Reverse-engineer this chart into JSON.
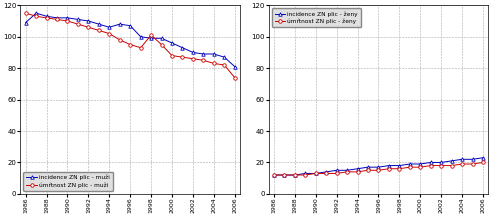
{
  "years": [
    1986,
    1987,
    1988,
    1989,
    1990,
    1991,
    1992,
    1993,
    1994,
    1995,
    1996,
    1997,
    1998,
    1999,
    2000,
    2001,
    2002,
    2003,
    2004,
    2005,
    2006
  ],
  "muzi_incidence": [
    109,
    115,
    113,
    112,
    112,
    111,
    110,
    108,
    106,
    108,
    107,
    100,
    99,
    99,
    96,
    93,
    90,
    89,
    89,
    87,
    81
  ],
  "muzi_umrtnost": [
    115,
    113,
    112,
    111,
    110,
    108,
    106,
    104,
    102,
    98,
    95,
    93,
    101,
    95,
    88,
    87,
    86,
    85,
    83,
    82,
    74
  ],
  "zeny_incidence": [
    12,
    12,
    12,
    13,
    13,
    14,
    15,
    15,
    16,
    17,
    17,
    18,
    18,
    19,
    19,
    20,
    20,
    21,
    22,
    22,
    23
  ],
  "zeny_umrtnost": [
    12,
    12,
    12,
    12,
    13,
    13,
    13,
    14,
    14,
    15,
    15,
    16,
    16,
    17,
    17,
    18,
    18,
    18,
    19,
    19,
    20
  ],
  "color_blue": "#0000bb",
  "color_red": "#cc0000",
  "legend_muzi": [
    "incidence ZN plic - muži",
    "úmŕtnost ZN plic - muži"
  ],
  "legend_zeny": [
    "incidence ZN plic - ženy",
    "úmŕtnost ZN plic - ženy"
  ],
  "ylim": [
    0,
    120
  ],
  "yticks": [
    0,
    20,
    40,
    60,
    80,
    100,
    120
  ],
  "xtick_years": [
    1986,
    1988,
    1990,
    1992,
    1994,
    1996,
    1998,
    2000,
    2002,
    2004,
    2006
  ],
  "bg_color": "#ffffff",
  "grid_color": "#aaaaaa"
}
